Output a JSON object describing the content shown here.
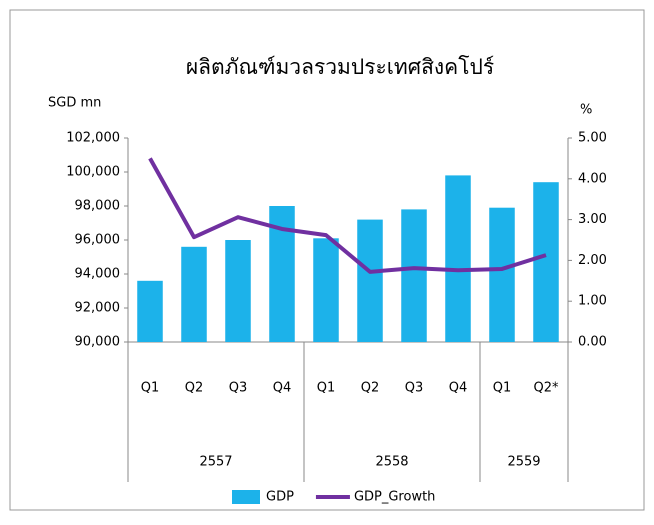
{
  "chart_data": {
    "type": "bar_line",
    "title": "ผลิตภัณฑ์มวลรวมประเทศสิงคโปร์",
    "y_label": "SGD  mn",
    "y2_label": "%",
    "categories": [
      "Q1",
      "Q2",
      "Q3",
      "Q4",
      "Q1",
      "Q2",
      "Q3",
      "Q4",
      "Q1",
      "Q2*"
    ],
    "groups": [
      {
        "label": "2557",
        "count": 4
      },
      {
        "label": "2558",
        "count": 4
      },
      {
        "label": "2559",
        "count": 2
      }
    ],
    "series": [
      {
        "name": "GDP",
        "type": "bar",
        "color": "#1cb2ea",
        "values": [
          93600,
          95600,
          96000,
          98000,
          96100,
          97200,
          97800,
          99800,
          97900,
          99400
        ]
      },
      {
        "name": "GDP_Growth",
        "type": "line",
        "axis": "y2",
        "color": "#7030a0",
        "values": [
          4.5,
          2.57,
          3.06,
          2.77,
          2.62,
          1.72,
          1.81,
          1.76,
          1.79,
          2.13
        ]
      }
    ],
    "ylim": [
      90000,
      102000
    ],
    "yticks": [
      {
        "value": 90000,
        "label": "90,000"
      },
      {
        "value": 92000,
        "label": "92,000"
      },
      {
        "value": 94000,
        "label": "94,000"
      },
      {
        "value": 96000,
        "label": "96,000"
      },
      {
        "value": 98000,
        "label": "98,000"
      },
      {
        "value": 100000,
        "label": "100,000"
      },
      {
        "value": 102000,
        "label": "102,000"
      }
    ],
    "y2lim": [
      0,
      5
    ],
    "y2ticks": [
      {
        "value": 0,
        "label": "0.00"
      },
      {
        "value": 1,
        "label": "1.00"
      },
      {
        "value": 2,
        "label": "2.00"
      },
      {
        "value": 3,
        "label": "3.00"
      },
      {
        "value": 4,
        "label": "4.00"
      },
      {
        "value": 5,
        "label": "5.00"
      }
    ],
    "legend": "bottom"
  }
}
